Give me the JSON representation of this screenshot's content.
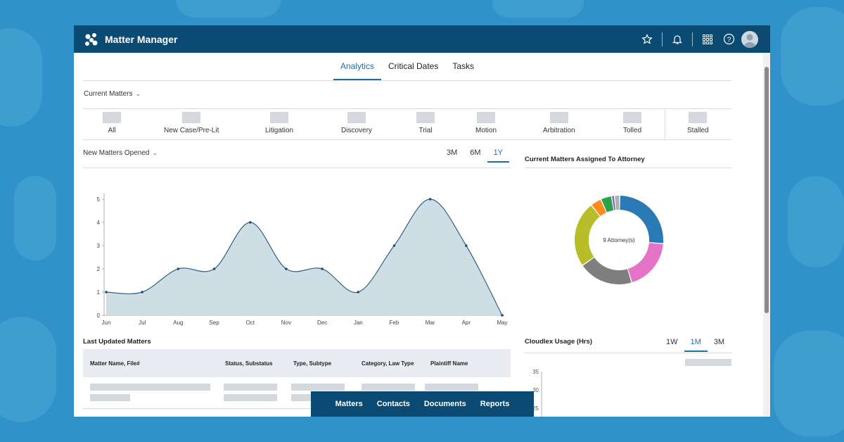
{
  "app": {
    "title": "Matter Manager"
  },
  "tabs": [
    {
      "label": "Analytics",
      "active": true
    },
    {
      "label": "Critical Dates",
      "active": false
    },
    {
      "label": "Tasks",
      "active": false
    }
  ],
  "current_matters": {
    "label": "Current Matters",
    "statuses": [
      "All",
      "New Case/Pre-Lit",
      "Litigation",
      "Discovery",
      "Trial",
      "Motion",
      "Arbitration",
      "Tolled",
      "Stalled"
    ]
  },
  "new_matters": {
    "label": "New Matters Opened",
    "ranges": [
      "3M",
      "6M",
      "1Y"
    ],
    "active_range": "1Y"
  },
  "attorney_panel": {
    "title": "Current Matters Assigned To Attorney",
    "center_label": "9 Attorney(s)"
  },
  "usage_panel": {
    "title": "Cloudlex Usage (Hrs)",
    "ranges": [
      "1W",
      "1M",
      "3M"
    ],
    "active_range": "1M",
    "y_ticks": [
      "35",
      "30",
      "25"
    ]
  },
  "last_updated": {
    "title": "Last Updated Matters",
    "columns": [
      "Matter Name, File#",
      "Status, Substatus",
      "Type, Subtype",
      "Category, Law Type",
      "Plaintiff Name"
    ]
  },
  "bottom_nav": [
    "Matters",
    "Contacts",
    "Documents",
    "Reports"
  ],
  "colors": {
    "brand": "#0b4a73",
    "accent": "#1d6ea3",
    "area_fill": "#cfdde4",
    "line": "#2e6585"
  },
  "chart_data": [
    {
      "type": "area",
      "title": "",
      "x": [
        "Jun",
        "Jul",
        "Aug",
        "Sep",
        "Oct",
        "Nov",
        "Dec",
        "Jan",
        "Feb",
        "Mar",
        "Apr",
        "May"
      ],
      "values": [
        1,
        1,
        2,
        2,
        4,
        2,
        2,
        1,
        3,
        5,
        3,
        0
      ],
      "ylim": [
        0,
        5
      ],
      "y_ticks": [
        0,
        1,
        2,
        3,
        4,
        5
      ],
      "grid": false
    },
    {
      "type": "pie",
      "title": "",
      "donut": true,
      "slices": [
        {
          "value": 26,
          "color": "#2a7ab5"
        },
        {
          "value": 19,
          "color": "#e573c8"
        },
        {
          "value": 20,
          "color": "#7f7f7f"
        },
        {
          "value": 24,
          "color": "#b8be2a"
        },
        {
          "value": 4,
          "color": "#ff8a1e"
        },
        {
          "value": 4,
          "color": "#2aa24a"
        },
        {
          "value": 1,
          "color": "#7a5bb8"
        },
        {
          "value": 2,
          "color": "#b0b0b0"
        }
      ]
    }
  ]
}
